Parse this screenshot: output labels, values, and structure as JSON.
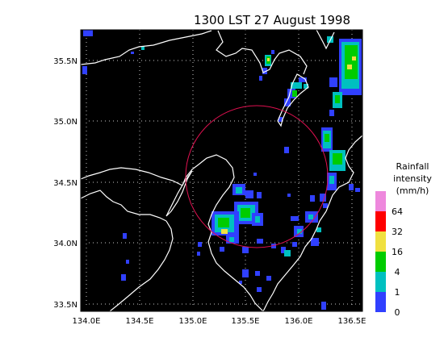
{
  "title": "1300 LST 27 August 1998",
  "lat_ticks": [
    "35.5N",
    "35.0N",
    "34.5N",
    "34.0N",
    "33.5N"
  ],
  "lon_ticks": [
    "134.0E",
    "134.5E",
    "135.0E",
    "135.5E",
    "136.0E",
    "136.5E"
  ],
  "legend": {
    "title_lines": [
      "Rainfall",
      "intensity",
      "(mm/h)"
    ],
    "levels": [
      "64",
      "32",
      "16",
      "4",
      "1",
      "0"
    ],
    "colors": [
      "#ee88dd",
      "#ff0000",
      "#f0e040",
      "#00cc00",
      "#00c0c0",
      "#3040ff"
    ]
  },
  "colors": {
    "background": "#000000",
    "coastline": "#ffffff",
    "radar_circle": "#e01050",
    "grid": "#c8c8c8"
  }
}
